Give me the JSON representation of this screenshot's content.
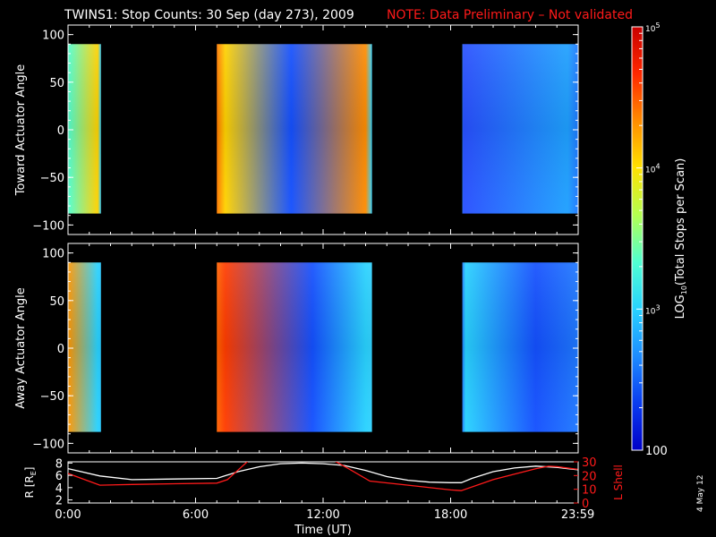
{
  "title": {
    "main": "TWINS1: Stop Counts: 30 Sep (day 273), 2009",
    "note": "NOTE: Data Preliminary – Not validated"
  },
  "footer_date": "4 May 12",
  "colorbar": {
    "label": "LOG10(Total Stops per Scan)",
    "label_parts": [
      "LOG",
      "10",
      "(Total Stops per Scan)"
    ],
    "scale": "log",
    "range": [
      100,
      100000
    ],
    "tick_labels": [
      "100",
      "10^3",
      "10^4",
      "10^5"
    ],
    "tick_values": [
      100,
      1000,
      10000,
      100000
    ],
    "colormap": [
      "#0000c8",
      "#0a3cf0",
      "#1e8cff",
      "#28d2ff",
      "#50ffd2",
      "#b4ff50",
      "#ffe100",
      "#ff8c00",
      "#ff2800",
      "#c80000"
    ]
  },
  "chart_data": [
    {
      "type": "heatmap",
      "name": "toward",
      "ylabel": "Toward Actuator Angle",
      "ylim": [
        -110,
        110
      ],
      "yticks": [
        -100,
        -50,
        0,
        50,
        100
      ],
      "xlim": [
        0,
        24
      ],
      "data_y_range": [
        -88,
        90
      ],
      "gap_color": "#000000",
      "segments": [
        {
          "t_start": 0.0,
          "t_end": 1.55,
          "baseline": "#28c8ff",
          "accents": [
            {
              "t": 0.0,
              "color": "#50ffd2"
            },
            {
              "t": 1.4,
              "color": "#ffd200"
            }
          ]
        },
        {
          "t_start": 7.0,
          "t_end": 14.3,
          "baseline": "#32d2ff",
          "accents": [
            {
              "t": 7.0,
              "color": "#ff7800"
            },
            {
              "t": 7.4,
              "color": "#ffd200"
            },
            {
              "t": 10.5,
              "color": "#1450ff"
            },
            {
              "t": 14.0,
              "color": "#ff8c00"
            }
          ]
        },
        {
          "t_start": 18.55,
          "t_end": 24.0,
          "baseline": "#1e78ff",
          "accents": [
            {
              "t": 18.6,
              "color": "#2850ff"
            },
            {
              "t": 23.5,
              "color": "#1ea0ff"
            }
          ]
        }
      ]
    },
    {
      "type": "heatmap",
      "name": "away",
      "ylabel": "Away Actuator Angle",
      "ylim": [
        -110,
        110
      ],
      "yticks": [
        -100,
        -50,
        0,
        50,
        100
      ],
      "xlim": [
        0,
        24
      ],
      "data_y_range": [
        -88,
        90
      ],
      "gap_color": "#000000",
      "segments": [
        {
          "t_start": 0.0,
          "t_end": 1.55,
          "baseline": "#28c8ff",
          "accents": [
            {
              "t": 0.0,
              "color": "#ff9600"
            },
            {
              "t": 1.4,
              "color": "#28d2ff"
            }
          ]
        },
        {
          "t_start": 7.0,
          "t_end": 14.3,
          "baseline": "#32d2ff",
          "accents": [
            {
              "t": 7.0,
              "color": "#ff6400"
            },
            {
              "t": 7.4,
              "color": "#ff3c00"
            },
            {
              "t": 11.5,
              "color": "#1450ff"
            },
            {
              "t": 14.0,
              "color": "#28d2ff"
            }
          ]
        },
        {
          "t_start": 18.55,
          "t_end": 24.0,
          "baseline": "#1e78ff",
          "accents": [
            {
              "t": 18.7,
              "color": "#28d2ff"
            },
            {
              "t": 22.0,
              "color": "#1450ff"
            }
          ]
        }
      ]
    },
    {
      "type": "line",
      "name": "orbit",
      "ylabel_left": "R [RE]",
      "ylabel_left_parts": [
        "R [R",
        "E",
        "]"
      ],
      "ylabel_right": "L Shell",
      "xlabel": "Time (UT)",
      "xlim": [
        0,
        24
      ],
      "xticks": [
        0,
        6,
        12,
        18,
        23.983
      ],
      "xtick_labels": [
        "0:00",
        "6:00",
        "12:00",
        "18:00",
        "23:59"
      ],
      "ylim_left": [
        1.5,
        8.2
      ],
      "yticks_left": [
        2,
        4,
        6,
        8
      ],
      "ylim_right": [
        0,
        30
      ],
      "yticks_right": [
        0,
        10,
        20,
        30
      ],
      "series": [
        {
          "axis": "left",
          "color": "#ffffff",
          "x": [
            0,
            1.5,
            3,
            5,
            7,
            8,
            9,
            10,
            11,
            12,
            13,
            14,
            15,
            16,
            17,
            18,
            18.5,
            19,
            20,
            21,
            22,
            23,
            23.98
          ],
          "y": [
            7.1,
            5.9,
            5.3,
            5.4,
            5.5,
            6.6,
            7.4,
            7.9,
            8.0,
            7.9,
            7.6,
            6.8,
            5.8,
            5.2,
            4.9,
            4.8,
            4.8,
            5.5,
            6.6,
            7.2,
            7.5,
            7.3,
            6.9
          ]
        },
        {
          "axis": "right",
          "color": "#ff1a1a",
          "x": [
            0,
            1.5,
            3,
            5,
            7,
            7.5,
            8.0,
            8.5,
            12.5,
            13.2,
            14.2,
            16,
            18,
            18.5,
            20,
            21,
            22,
            22.6,
            23,
            23.98
          ],
          "y": [
            21.5,
            13.0,
            13.5,
            14.0,
            14.5,
            17.0,
            24.0,
            31.0,
            31.0,
            25.0,
            16.0,
            13.0,
            9.5,
            9.0,
            17.0,
            21.0,
            25.0,
            26.8,
            26.5,
            24.5
          ]
        }
      ]
    }
  ]
}
